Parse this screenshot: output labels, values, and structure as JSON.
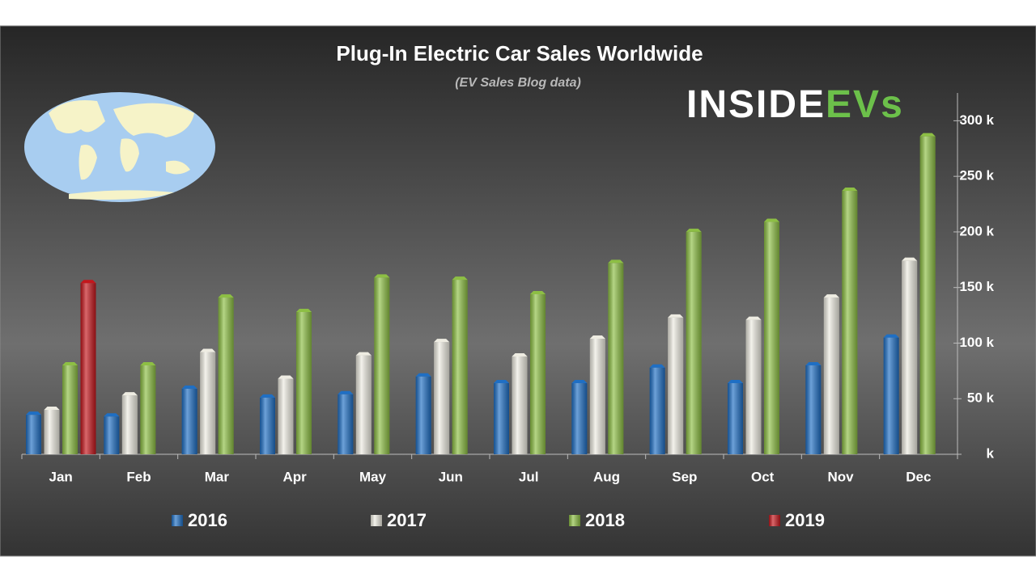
{
  "chart_data": {
    "type": "bar",
    "title": "Plug-In Electric Car Sales Worldwide",
    "subtitle": "(EV Sales Blog data)",
    "logo": [
      "INSIDE",
      "EVs"
    ],
    "categories": [
      "Jan",
      "Feb",
      "Mar",
      "Apr",
      "May",
      "Jun",
      "Jul",
      "Aug",
      "Sep",
      "Oct",
      "Nov",
      "Dec"
    ],
    "series": [
      {
        "name": "2016",
        "color": "#1f6fc4",
        "values": [
          35500,
          34000,
          59000,
          51000,
          54000,
          70000,
          64000,
          64000,
          78000,
          64000,
          80000,
          105000
        ]
      },
      {
        "name": "2017",
        "color": "#eeece2",
        "values": [
          40000,
          53000,
          92000,
          68000,
          89000,
          101000,
          88000,
          104000,
          123000,
          121000,
          141000,
          174000
        ]
      },
      {
        "name": "2018",
        "color": "#8dbf44",
        "values": [
          80000,
          80000,
          141000,
          128000,
          159000,
          157000,
          144000,
          172000,
          200000,
          209000,
          237000,
          286000
        ]
      },
      {
        "name": "2019",
        "color": "#c4161c",
        "values": [
          154000,
          null,
          null,
          null,
          null,
          null,
          null,
          null,
          null,
          null,
          null,
          null
        ]
      }
    ],
    "ylim": [
      0,
      325000
    ],
    "yticks": [
      {
        "value": 0,
        "label": "k"
      },
      {
        "value": 50000,
        "label": "50 k"
      },
      {
        "value": 100000,
        "label": "100 k"
      },
      {
        "value": 150000,
        "label": "150 k"
      },
      {
        "value": 200000,
        "label": "200 k"
      },
      {
        "value": 250000,
        "label": "250 k"
      },
      {
        "value": 300000,
        "label": "300 k"
      }
    ],
    "y_axis_side": "right",
    "grid": false,
    "legend": "bottom"
  }
}
